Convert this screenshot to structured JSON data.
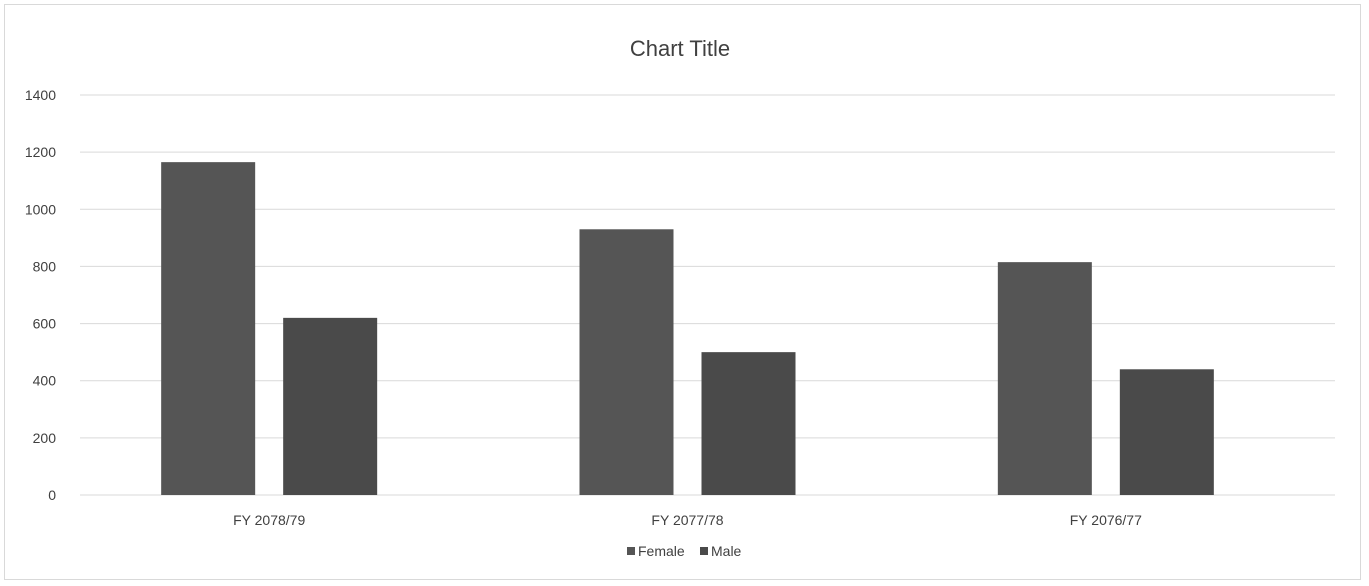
{
  "chart_data": {
    "type": "bar",
    "title": "Chart Title",
    "categories": [
      "FY 2078/79",
      "FY 2077/78",
      "FY 2076/77"
    ],
    "series": [
      {
        "name": "Female",
        "values": [
          1165,
          930,
          815
        ]
      },
      {
        "name": "Male",
        "values": [
          620,
          500,
          440
        ]
      }
    ],
    "ylim": [
      0,
      1400
    ],
    "yticks": [
      0,
      200,
      400,
      600,
      800,
      1000,
      1200,
      1400
    ],
    "grid": true,
    "legend_position": "bottom",
    "colors": {
      "Female": "#555555",
      "Male": "#4a4a4a"
    }
  }
}
